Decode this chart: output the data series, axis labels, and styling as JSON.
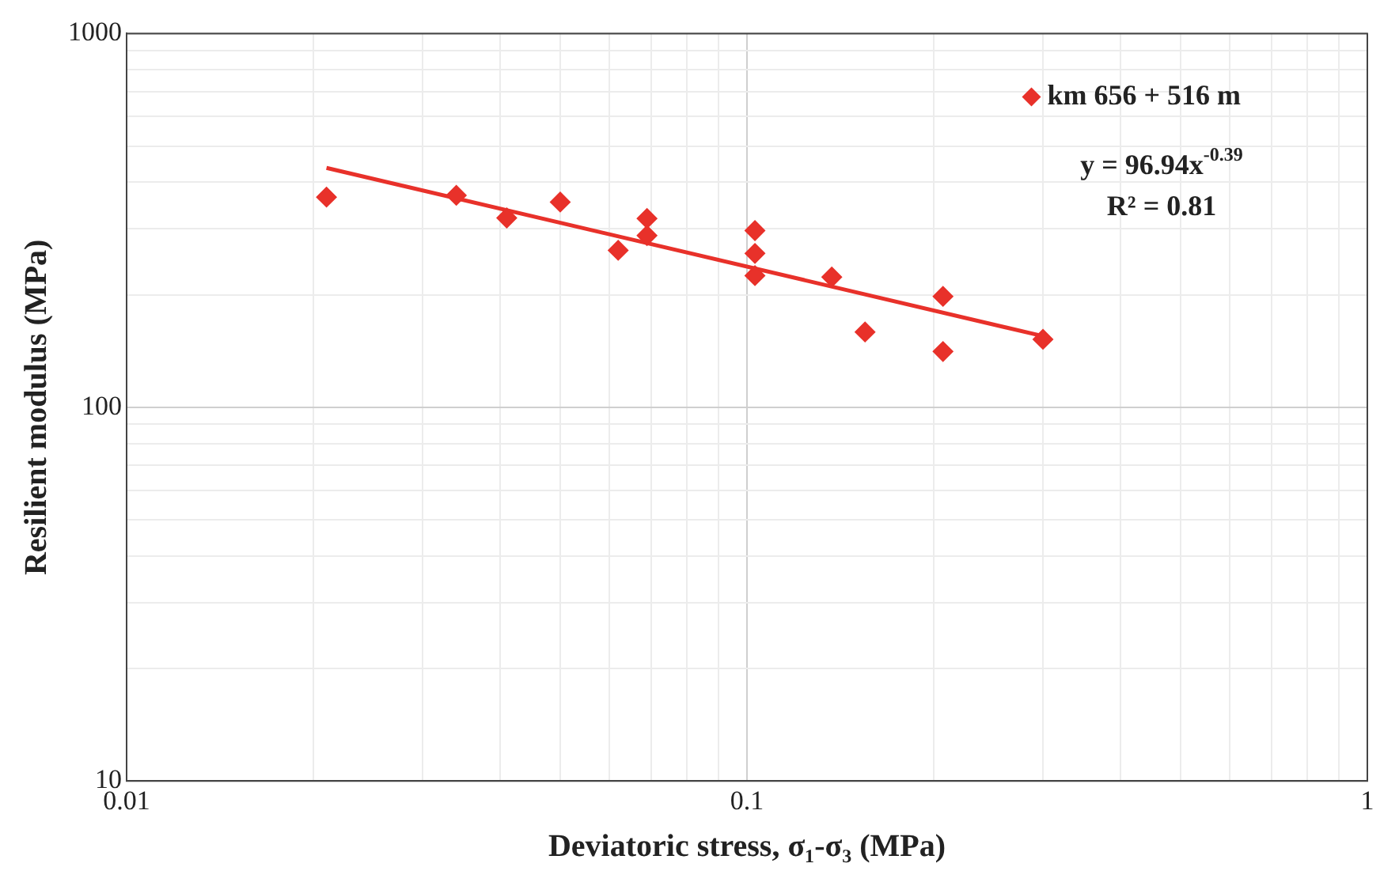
{
  "chart_data": {
    "type": "scatter",
    "xlabel": "Deviatoric stress, σ₁-σ₃ (MPa)",
    "ylabel": "Resilient modulus (MPa)",
    "log": "xy",
    "grid": true,
    "legend": "top right",
    "marker": "diamond",
    "xlim": [
      0.01,
      1
    ],
    "ylim": [
      10,
      1000
    ],
    "xticks": [
      0.01,
      {
        "value": 0.02,
        "label": null
      },
      {
        "value": 0.03,
        "label": null
      },
      {
        "value": 0.04,
        "label": null
      },
      {
        "value": 0.05,
        "label": null
      },
      {
        "value": 0.06,
        "label": null
      },
      {
        "value": 0.07,
        "label": null
      },
      {
        "value": 0.08,
        "label": null
      },
      {
        "value": 0.09,
        "label": null
      },
      0.1,
      {
        "value": 0.2,
        "label": null
      },
      {
        "value": 0.3,
        "label": null
      },
      {
        "value": 0.4,
        "label": null
      },
      {
        "value": 0.5,
        "label": null
      },
      {
        "value": 0.6,
        "label": null
      },
      {
        "value": 0.7,
        "label": null
      },
      {
        "value": 0.8,
        "label": null
      },
      {
        "value": 0.9,
        "label": null
      },
      1
    ],
    "yticks": [
      10,
      {
        "value": 20,
        "label": null
      },
      {
        "value": 30,
        "label": null
      },
      {
        "value": 40,
        "label": null
      },
      {
        "value": 50,
        "label": null
      },
      {
        "value": 60,
        "label": null
      },
      {
        "value": 70,
        "label": null
      },
      {
        "value": 80,
        "label": null
      },
      {
        "value": 90,
        "label": null
      },
      100,
      {
        "value": 200,
        "label": null
      },
      {
        "value": 300,
        "label": null
      },
      {
        "value": 400,
        "label": null
      },
      {
        "value": 500,
        "label": null
      },
      {
        "value": 600,
        "label": null
      },
      {
        "value": 700,
        "label": null
      },
      {
        "value": 800,
        "label": null
      },
      {
        "value": 900,
        "label": null
      },
      1000
    ],
    "series": [
      {
        "name": "km 656 + 516 m",
        "color": "#e8312a",
        "x": [
          0.021,
          0.034,
          0.041,
          0.05,
          0.062,
          0.069,
          0.069,
          0.103,
          0.103,
          0.103,
          0.137,
          0.155,
          0.207,
          0.207,
          0.3
        ],
        "values": [
          365,
          369,
          321,
          354,
          263,
          320,
          288,
          297,
          258,
          225,
          223,
          159,
          198,
          141,
          152
        ]
      },
      {
        "type": "line",
        "color": "#e8312a",
        "marker": "none",
        "x": [
          0.021,
          0.3
        ],
        "values": [
          437,
          155
        ]
      }
    ],
    "annotations": [
      "y = 96.94x$^{-0.39}$",
      "R² = 0.81"
    ]
  }
}
